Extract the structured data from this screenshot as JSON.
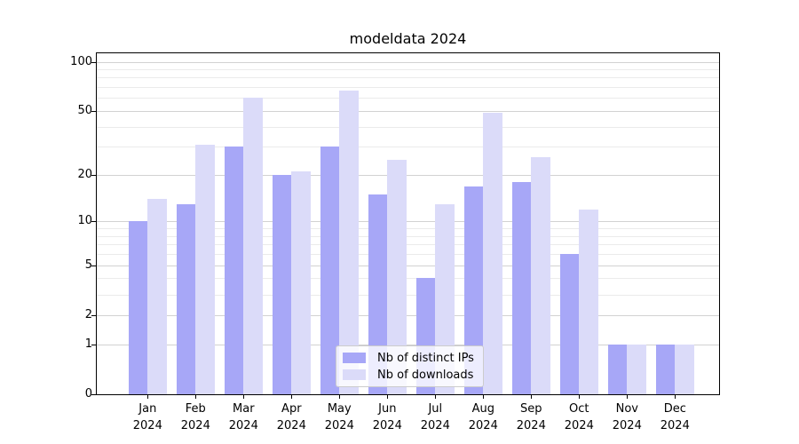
{
  "title": "modeldata 2024",
  "chart_data": {
    "type": "bar",
    "title": "modeldata 2024",
    "categories": [
      "Jan 2024",
      "Feb 2024",
      "Mar 2024",
      "Apr 2024",
      "May 2024",
      "Jun 2024",
      "Jul 2024",
      "Aug 2024",
      "Sep 2024",
      "Oct 2024",
      "Nov 2024",
      "Dec 2024"
    ],
    "months": [
      "Jan",
      "Feb",
      "Mar",
      "Apr",
      "May",
      "Jun",
      "Jul",
      "Aug",
      "Sep",
      "Oct",
      "Nov",
      "Dec"
    ],
    "year": "2024",
    "series": [
      {
        "name": "Nb of distinct IPs",
        "color": "#a7a7f7",
        "values": [
          10,
          13,
          30,
          20,
          30,
          15,
          4,
          17,
          18,
          6,
          1,
          1
        ]
      },
      {
        "name": "Nb of downloads",
        "color": "#dbdbf9",
        "values": [
          14,
          31,
          60,
          21,
          67,
          25,
          13,
          49,
          26,
          12,
          1,
          1
        ]
      }
    ],
    "xlabel": "",
    "ylabel": "",
    "yscale": "log10(value+1)",
    "ytick_values": [
      0,
      1,
      2,
      5,
      10,
      20,
      50,
      100
    ],
    "minor_gridline_values": [
      3,
      4,
      6,
      7,
      8,
      9,
      30,
      40,
      60,
      70,
      80,
      90
    ],
    "ylim": [
      0,
      114
    ],
    "grid": true,
    "legend_position": "inside lower-center",
    "colors": {
      "grid_major": "#d2d2d2",
      "grid_minor": "#ebebeb",
      "axis": "#000000",
      "background": "#ffffff"
    }
  }
}
